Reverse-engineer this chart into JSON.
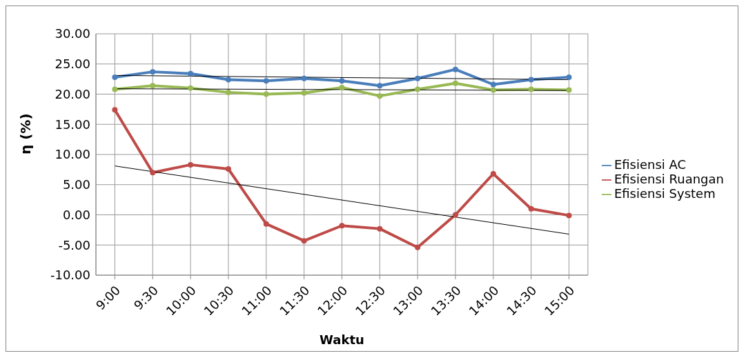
{
  "chart_data": {
    "type": "line",
    "xlabel": "Waktu",
    "ylabel": "η (%)",
    "categories": [
      "9:00",
      "9:30",
      "10:00",
      "10:30",
      "11:00",
      "11:30",
      "12:00",
      "12:30",
      "13:00",
      "13:30",
      "14:00",
      "14:30",
      "15:00"
    ],
    "series": [
      {
        "name": "Efisiensi AC",
        "color": "#4a7ebb",
        "values": [
          22.8,
          23.7,
          23.4,
          22.4,
          22.2,
          22.6,
          22.2,
          21.4,
          22.6,
          24.1,
          21.6,
          22.4,
          22.8
        ]
      },
      {
        "name": "Efisiensi Ruangan",
        "color": "#be4b48",
        "values": [
          17.4,
          7.0,
          8.3,
          7.6,
          -1.5,
          -4.3,
          -1.8,
          -2.3,
          -5.4,
          0.0,
          6.8,
          1.0,
          -0.1
        ]
      },
      {
        "name": "Efisiensi System",
        "color": "#98b954",
        "values": [
          20.8,
          21.4,
          21.0,
          20.3,
          20.0,
          20.2,
          21.1,
          19.7,
          20.8,
          21.8,
          20.7,
          20.8,
          20.7
        ]
      },
      {
        "type": "line",
        "color": "#000000",
        "marker": "none",
        "x": [
          "9:00",
          "15:00"
        ],
        "values": [
          23.1,
          22.4
        ]
      },
      {
        "type": "line",
        "color": "#000000",
        "marker": "none",
        "x": [
          "9:00",
          "15:00"
        ],
        "values": [
          8.1,
          -3.2
        ]
      },
      {
        "type": "line",
        "color": "#000000",
        "marker": "none",
        "x": [
          "9:00",
          "15:00"
        ],
        "values": [
          20.9,
          20.6
        ]
      }
    ],
    "ylim": [
      -10,
      30
    ],
    "yticks": [
      {
        "value": -10,
        "label": "-10.00"
      },
      {
        "value": -5,
        "label": "-5.00"
      },
      {
        "value": 0,
        "label": "0.00"
      },
      {
        "value": 5,
        "label": "5.00"
      },
      {
        "value": 10,
        "label": "10.00"
      },
      {
        "value": 15,
        "label": "15.00"
      },
      {
        "value": 20,
        "label": "20.00"
      },
      {
        "value": 25,
        "label": "25.00"
      },
      {
        "value": 30,
        "label": "30.00"
      }
    ],
    "grid": true,
    "legend": "right",
    "marker": "circle"
  }
}
